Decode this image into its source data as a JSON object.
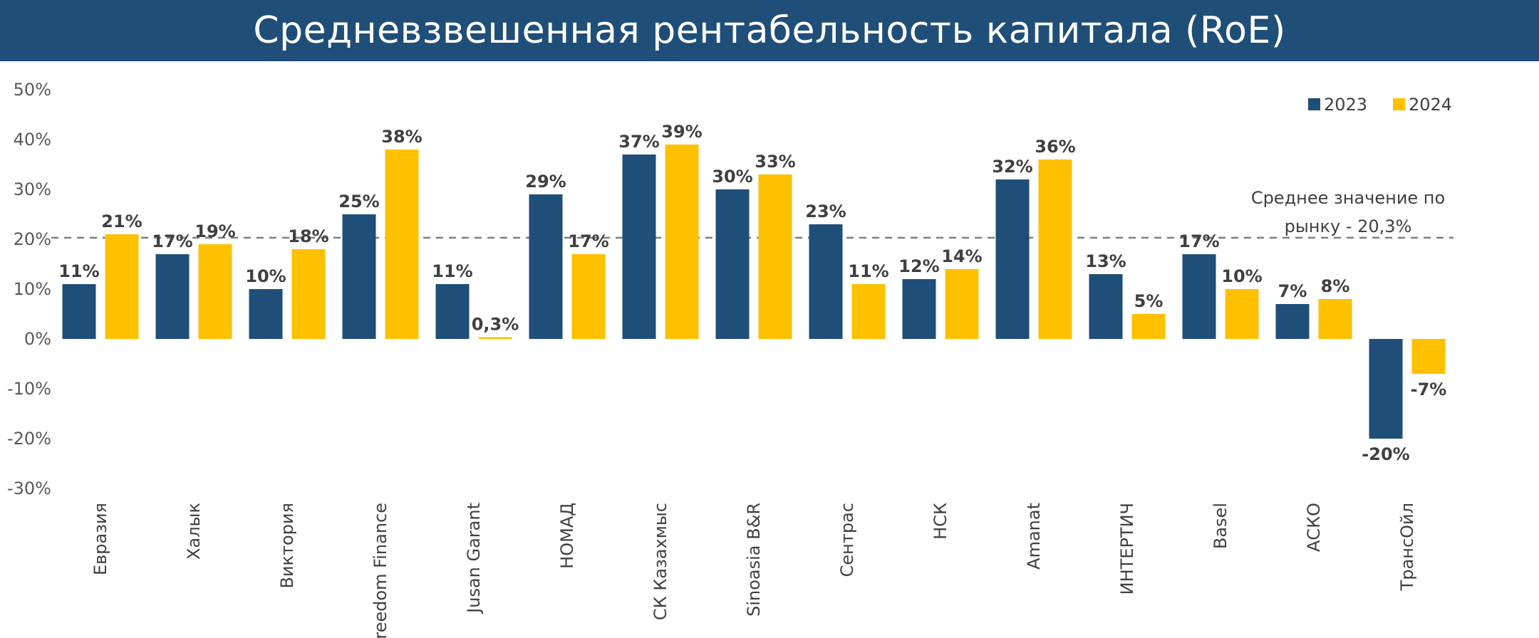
{
  "header": {
    "title": "Средневзвешенная рентабельность капитала (RoE)"
  },
  "chart_data": {
    "type": "bar",
    "title": "Средневзвешенная рентабельность капитала (RoE)",
    "categories": [
      "Евразия",
      "Халык",
      "Виктория",
      "Freedom Finance",
      "Jusan Garant",
      "НОМАД",
      "СК Казахмыс",
      "Sinoasia B&R",
      "Сентрас",
      "НСК",
      "Amanat",
      "ИНТЕРТИЧ",
      "Basel",
      "АСКО",
      "ТрансОйл"
    ],
    "series": [
      {
        "name": "2023",
        "color": "#1F4E79",
        "values": [
          11,
          17,
          10,
          25,
          11,
          29,
          37,
          30,
          23,
          12,
          32,
          13,
          17,
          7,
          -20
        ],
        "labels": [
          "11%",
          "17%",
          "10%",
          "25%",
          "11%",
          "29%",
          "37%",
          "30%",
          "23%",
          "12%",
          "32%",
          "13%",
          "17%",
          "7%",
          "-20%"
        ]
      },
      {
        "name": "2024",
        "color": "#FFC000",
        "values": [
          21,
          19,
          18,
          38,
          0.3,
          17,
          39,
          33,
          11,
          14,
          36,
          5,
          10,
          8,
          -7
        ],
        "labels": [
          "21%",
          "19%",
          "18%",
          "38%",
          "0,3%",
          "17%",
          "39%",
          "33%",
          "11%",
          "14%",
          "36%",
          "5%",
          "10%",
          "8%",
          "-7%"
        ]
      }
    ],
    "ylim": [
      -30,
      50
    ],
    "yticks": [
      50,
      40,
      30,
      20,
      10,
      0,
      -10,
      -20,
      -30
    ],
    "ytick_labels": [
      "50%",
      "40%",
      "30%",
      "20%",
      "10%",
      "0%",
      "-10%",
      "-20%",
      "-30%"
    ],
    "reference_line": {
      "value": 20.3,
      "style": "dashed",
      "color": "#7F7F7F",
      "label_lines": [
        "Среднее значение по",
        "рынку - 20,3%"
      ]
    },
    "legend_position": "top-right",
    "grid": false
  }
}
